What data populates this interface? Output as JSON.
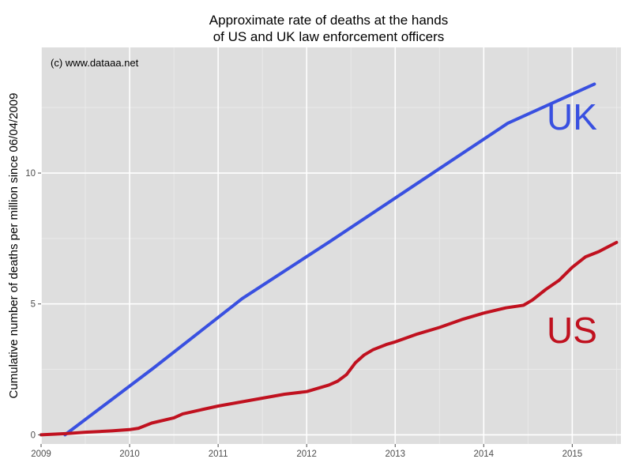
{
  "chart_data": {
    "type": "line",
    "title": [
      "Approximate rate of deaths at the hands",
      "of US and UK law enforcement officers"
    ],
    "watermark": "(c) www.dataaa.net",
    "xlabel": "",
    "ylabel": "Cumulative number of deaths per million since 06/04/2009",
    "xlim": [
      2009.0,
      2015.55
    ],
    "ylim": [
      -0.35,
      14.8
    ],
    "x_ticks": [
      2009,
      2010,
      2011,
      2012,
      2013,
      2014,
      2015
    ],
    "x_tick_labels": [
      "2009",
      "2010",
      "2011",
      "2012",
      "2013",
      "2014",
      "2015"
    ],
    "y_ticks": [
      0,
      5,
      10
    ],
    "y_tick_labels": [
      "0",
      "5",
      "10"
    ],
    "grid": true,
    "legend": "none",
    "background": "#dedede",
    "series": [
      {
        "name": "UK",
        "color": "#3950e0",
        "x": [
          2009.27,
          2010.27,
          2011.27,
          2012.27,
          2013.27,
          2014.27,
          2015.25
        ],
        "y": [
          0.0,
          2.55,
          5.2,
          7.4,
          9.65,
          11.9,
          13.4
        ]
      },
      {
        "name": "US",
        "color": "#c0111f",
        "x": [
          2009.0,
          2009.3,
          2009.5,
          2009.8,
          2010.0,
          2010.1,
          2010.25,
          2010.5,
          2010.6,
          2010.8,
          2011.0,
          2011.25,
          2011.5,
          2011.75,
          2012.0,
          2012.25,
          2012.35,
          2012.45,
          2012.55,
          2012.65,
          2012.75,
          2012.9,
          2013.0,
          2013.25,
          2013.5,
          2013.75,
          2014.0,
          2014.25,
          2014.45,
          2014.55,
          2014.7,
          2014.85,
          2015.0,
          2015.15,
          2015.3,
          2015.5
        ],
        "y": [
          0.0,
          0.05,
          0.1,
          0.15,
          0.2,
          0.25,
          0.45,
          0.65,
          0.8,
          0.95,
          1.1,
          1.25,
          1.4,
          1.55,
          1.65,
          1.9,
          2.05,
          2.3,
          2.75,
          3.05,
          3.25,
          3.45,
          3.55,
          3.85,
          4.1,
          4.4,
          4.65,
          4.85,
          4.95,
          5.15,
          5.55,
          5.9,
          6.4,
          6.8,
          7.0,
          7.35
        ]
      }
    ]
  }
}
